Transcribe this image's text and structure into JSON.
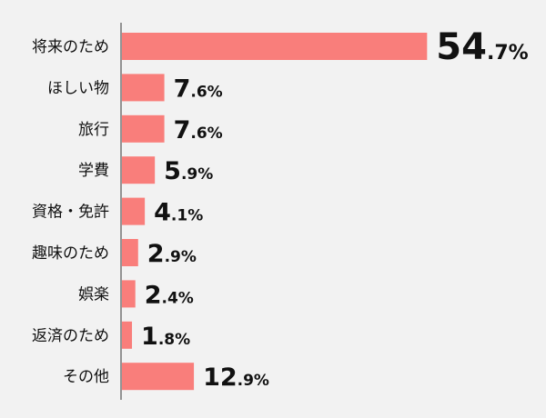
{
  "chart_data": {
    "type": "bar",
    "orientation": "horizontal",
    "categories": [
      "将来のため",
      "ほしい物",
      "旅行",
      "学費",
      "資格・免許",
      "趣味のため",
      "娯楽",
      "返済のため",
      "その他"
    ],
    "values": [
      54.7,
      7.6,
      7.6,
      5.9,
      4.1,
      2.9,
      2.4,
      1.8,
      12.9
    ],
    "value_labels": [
      {
        "int": "54",
        "dec": ".7%"
      },
      {
        "int": "7",
        "dec": ".6%"
      },
      {
        "int": "7",
        "dec": ".6%"
      },
      {
        "int": "5",
        "dec": ".9%"
      },
      {
        "int": "4",
        "dec": ".1%"
      },
      {
        "int": "2",
        "dec": ".9%"
      },
      {
        "int": "2",
        "dec": ".4%"
      },
      {
        "int": "1",
        "dec": ".8%"
      },
      {
        "int": "12",
        "dec": ".9%"
      }
    ],
    "bar_color": "#f97e7b",
    "background_color": "#f2f2f2",
    "grid": false,
    "legend": "none"
  }
}
